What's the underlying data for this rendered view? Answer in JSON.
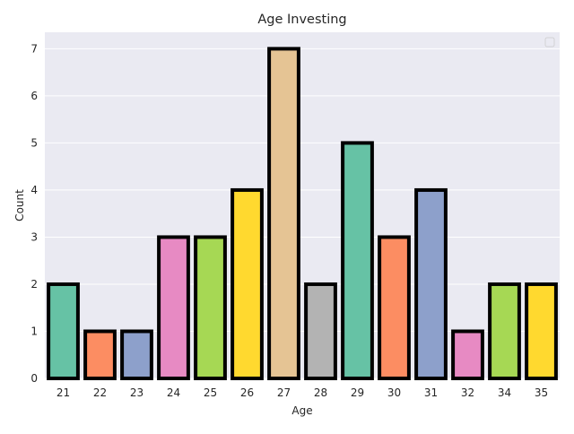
{
  "chart_data": {
    "type": "bar",
    "title": "Age Investing",
    "xlabel": "Age",
    "ylabel": "Count",
    "categories": [
      "21",
      "22",
      "23",
      "24",
      "25",
      "26",
      "27",
      "28",
      "29",
      "30",
      "31",
      "32",
      "34",
      "35"
    ],
    "values": [
      2,
      1,
      1,
      3,
      3,
      4,
      7,
      2,
      5,
      3,
      4,
      1,
      2,
      2
    ],
    "colors": [
      "#66c2a5",
      "#fc8d62",
      "#8da0cb",
      "#e78ac3",
      "#a6d854",
      "#ffd92f",
      "#e5c494",
      "#b3b3b3",
      "#66c2a5",
      "#fc8d62",
      "#8da0cb",
      "#e78ac3",
      "#a6d854",
      "#ffd92f"
    ],
    "ylim": [
      0,
      7.35
    ],
    "yticks": [
      0,
      1,
      2,
      3,
      4,
      5,
      6,
      7
    ],
    "grid": true,
    "legend": "top-right (empty)",
    "bar_edge_color": "#000000",
    "background_color": "#eaeaf2"
  }
}
